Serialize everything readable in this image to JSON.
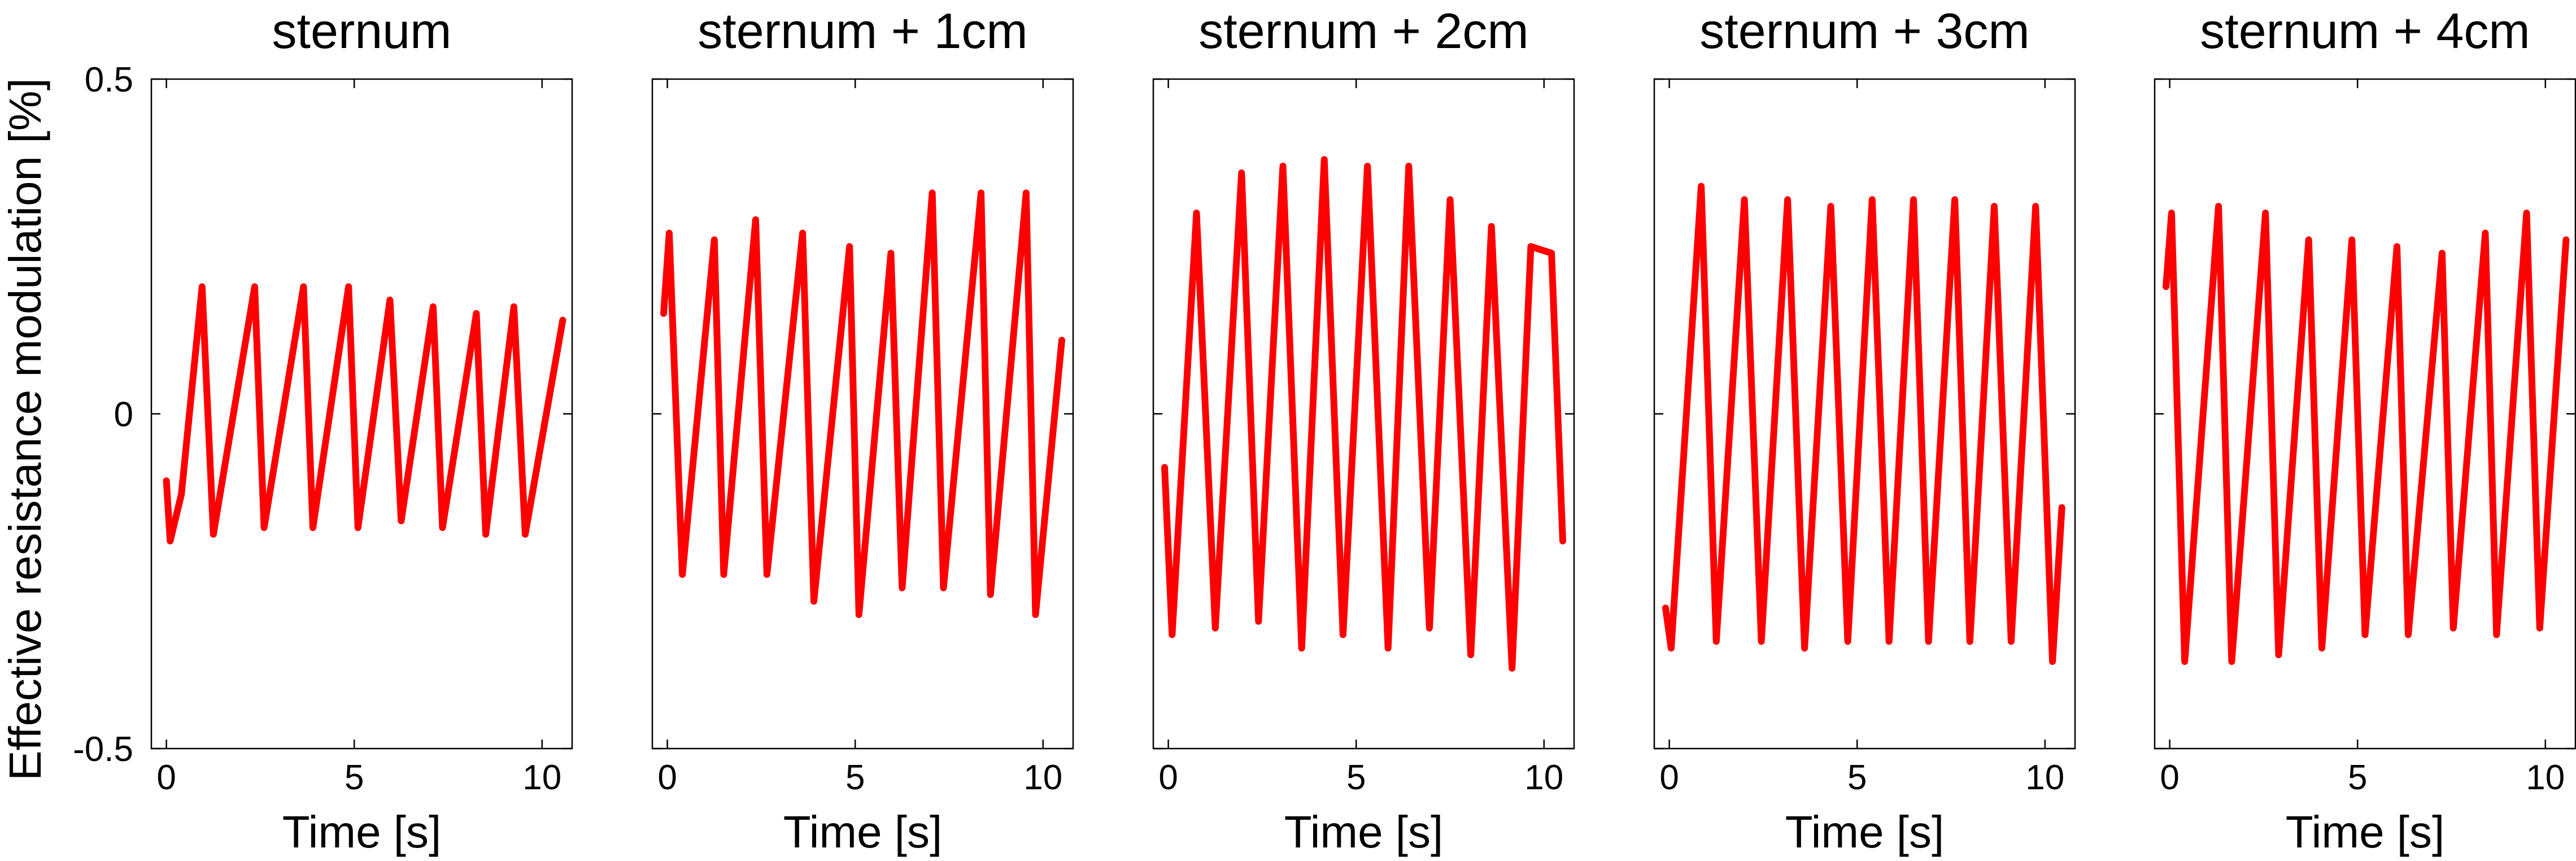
{
  "ylabel": "Effective resistance modulation [%]",
  "colors": {
    "series": "#ff0000",
    "axes": "#000000"
  },
  "chart_data": [
    {
      "type": "line",
      "title": "sternum",
      "xlabel": "Time [s]",
      "xlim": [
        -0.4,
        10.8
      ],
      "ylim": [
        -0.5,
        0.5
      ],
      "xticks": [
        0,
        5,
        10
      ],
      "yticks": [
        -0.5,
        0,
        0.5
      ],
      "grid": false,
      "series": [
        {
          "color": "#ff0000",
          "x": [
            0.0,
            0.1,
            0.4,
            0.95,
            1.25,
            2.35,
            2.6,
            3.65,
            3.9,
            4.85,
            5.1,
            5.95,
            6.25,
            7.1,
            7.35,
            8.25,
            8.5,
            9.25,
            9.55,
            10.55
          ],
          "y": [
            -0.1,
            -0.19,
            -0.12,
            0.19,
            -0.18,
            0.19,
            -0.17,
            0.19,
            -0.17,
            0.19,
            -0.17,
            0.17,
            -0.16,
            0.16,
            -0.17,
            0.15,
            -0.18,
            0.16,
            -0.18,
            0.14
          ]
        }
      ]
    },
    {
      "type": "line",
      "title": "sternum + 1cm",
      "xlabel": "Time [s]",
      "xlim": [
        -0.4,
        10.8
      ],
      "ylim": [
        -0.5,
        0.5
      ],
      "xticks": [
        0,
        5,
        10
      ],
      "yticks": [
        -0.5,
        0,
        0.5
      ],
      "grid": false,
      "series": [
        {
          "color": "#ff0000",
          "x": [
            -0.1,
            0.05,
            0.4,
            1.25,
            1.5,
            2.35,
            2.65,
            3.6,
            3.9,
            4.85,
            5.1,
            5.95,
            6.25,
            7.05,
            7.35,
            8.35,
            8.6,
            9.55,
            9.8,
            10.5
          ],
          "y": [
            0.15,
            0.27,
            -0.24,
            0.26,
            -0.24,
            0.29,
            -0.24,
            0.27,
            -0.28,
            0.25,
            -0.3,
            0.24,
            -0.26,
            0.33,
            -0.26,
            0.33,
            -0.27,
            0.33,
            -0.3,
            0.11
          ]
        }
      ]
    },
    {
      "type": "line",
      "title": "sternum + 2cm",
      "xlabel": "Time [s]",
      "xlim": [
        -0.4,
        10.8
      ],
      "ylim": [
        -0.5,
        0.5
      ],
      "xticks": [
        0,
        5,
        10
      ],
      "yticks": [
        -0.5,
        0,
        0.5
      ],
      "grid": false,
      "series": [
        {
          "color": "#ff0000",
          "x": [
            -0.1,
            0.1,
            0.75,
            1.25,
            1.95,
            2.4,
            3.05,
            3.55,
            4.15,
            4.65,
            5.3,
            5.85,
            6.4,
            6.95,
            7.5,
            8.05,
            8.6,
            9.15,
            9.65,
            10.2,
            10.5
          ],
          "y": [
            -0.08,
            -0.33,
            0.3,
            -0.32,
            0.36,
            -0.31,
            0.37,
            -0.35,
            0.38,
            -0.33,
            0.37,
            -0.35,
            0.37,
            -0.32,
            0.32,
            -0.36,
            0.28,
            -0.38,
            0.25,
            0.24,
            -0.19
          ]
        }
      ]
    },
    {
      "type": "line",
      "title": "sternum + 3cm",
      "xlabel": "Time [s]",
      "xlim": [
        -0.4,
        10.8
      ],
      "ylim": [
        -0.5,
        0.5
      ],
      "xticks": [
        0,
        5,
        10
      ],
      "yticks": [
        -0.5,
        0,
        0.5
      ],
      "grid": false,
      "series": [
        {
          "color": "#ff0000",
          "x": [
            -0.1,
            0.05,
            0.85,
            1.25,
            2.0,
            2.45,
            3.15,
            3.6,
            4.3,
            4.75,
            5.4,
            5.85,
            6.5,
            6.9,
            7.6,
            8.0,
            8.65,
            9.1,
            9.75,
            10.2,
            10.45
          ],
          "y": [
            -0.29,
            -0.35,
            0.34,
            -0.34,
            0.32,
            -0.34,
            0.32,
            -0.35,
            0.31,
            -0.34,
            0.32,
            -0.34,
            0.32,
            -0.34,
            0.32,
            -0.34,
            0.31,
            -0.34,
            0.31,
            -0.37,
            -0.14
          ]
        }
      ]
    },
    {
      "type": "line",
      "title": "sternum + 4cm",
      "xlabel": "Time [s]",
      "xlim": [
        -0.4,
        10.8
      ],
      "ylim": [
        -0.5,
        0.5
      ],
      "xticks": [
        0,
        5,
        10
      ],
      "yticks": [
        -0.5,
        0,
        0.5
      ],
      "grid": false,
      "series": [
        {
          "color": "#ff0000",
          "x": [
            -0.1,
            0.05,
            0.4,
            1.3,
            1.65,
            2.55,
            2.9,
            3.7,
            4.05,
            4.85,
            5.2,
            6.05,
            6.35,
            7.25,
            7.55,
            8.4,
            8.7,
            9.5,
            9.85,
            10.55
          ],
          "y": [
            0.19,
            0.3,
            -0.37,
            0.31,
            -0.37,
            0.3,
            -0.36,
            0.26,
            -0.35,
            0.26,
            -0.33,
            0.25,
            -0.33,
            0.24,
            -0.32,
            0.27,
            -0.33,
            0.3,
            -0.32,
            0.26
          ]
        }
      ]
    }
  ]
}
